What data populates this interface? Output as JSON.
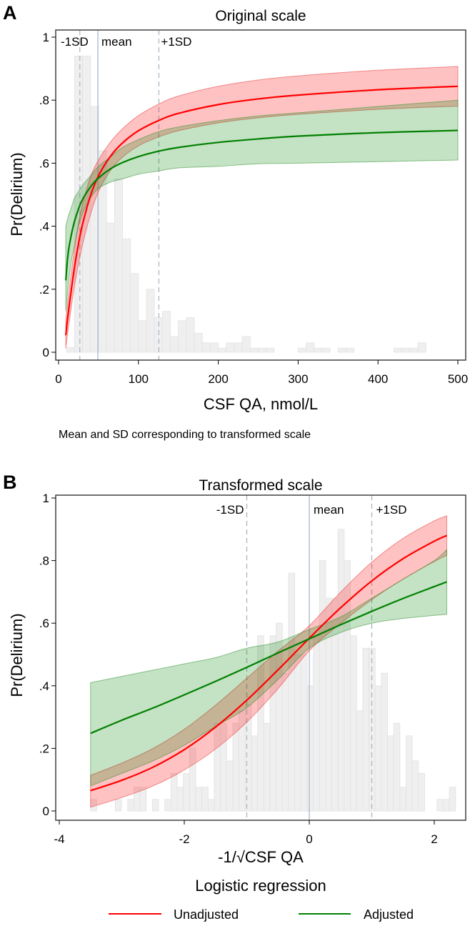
{
  "chart_data": [
    {
      "type": "line",
      "panel_label": "A",
      "title": "Original scale",
      "xlabel": "CSF QA, nmol/L",
      "ylabel": "Pr(Delirium)",
      "xlim": [
        0,
        500
      ],
      "ylim": [
        0,
        1
      ],
      "xticks": [
        0,
        100,
        200,
        300,
        400,
        500
      ],
      "xtick_labels": [
        "0",
        "100",
        "200",
        "300",
        "400",
        "500"
      ],
      "yticks": [
        0,
        0.2,
        0.4,
        0.6,
        0.8,
        1
      ],
      "ytick_labels": [
        "0",
        ".2",
        ".4",
        ".6",
        ".8",
        "1"
      ],
      "grid": false,
      "vlines": [
        {
          "label": "-1SD",
          "x": 26.6,
          "style": "dashed"
        },
        {
          "label": "mean",
          "x": 49.2,
          "style": "solid"
        },
        {
          "label": "+1SD",
          "x": 125.6,
          "style": "dashed"
        }
      ],
      "histogram": {
        "bin_start": 10,
        "bin_width": 10,
        "heights": [
          0.015,
          0.94,
          0.94,
          0.78,
          0.64,
          0.41,
          0.55,
          0.36,
          0.25,
          0.1,
          0.2,
          0.11,
          0.13,
          0.05,
          0.1,
          0.11,
          0.06,
          0.03,
          0.03,
          0.013,
          0.03,
          0.03,
          0.05,
          0.013,
          0.013,
          0.013,
          0,
          0,
          0,
          0.013,
          0.03,
          0.013,
          0.013,
          0,
          0.013,
          0.013,
          0,
          0,
          0,
          0,
          0,
          0.013,
          0.013,
          0.013,
          0.03
        ]
      },
      "x": [
        9,
        12,
        16,
        20,
        25,
        30,
        40,
        50,
        65,
        80,
        100,
        125,
        150,
        200,
        250,
        300,
        400,
        500
      ],
      "series": [
        {
          "name": "Unadjusted",
          "color": "#ff0000",
          "y": [
            0.054,
            0.122,
            0.199,
            0.271,
            0.345,
            0.406,
            0.497,
            0.56,
            0.622,
            0.664,
            0.703,
            0.735,
            0.758,
            0.786,
            0.804,
            0.816,
            0.833,
            0.844
          ],
          "ci_low": [
            0.012,
            0.072,
            0.144,
            0.211,
            0.28,
            0.341,
            0.437,
            0.51,
            0.577,
            0.619,
            0.655,
            0.683,
            0.703,
            0.728,
            0.744,
            0.755,
            0.771,
            0.781
          ],
          "ci_high": [
            0.099,
            0.172,
            0.254,
            0.331,
            0.41,
            0.471,
            0.557,
            0.61,
            0.667,
            0.709,
            0.751,
            0.787,
            0.813,
            0.844,
            0.864,
            0.877,
            0.895,
            0.907
          ]
        },
        {
          "name": "Adjusted",
          "color": "#008000",
          "y": [
            0.228,
            0.314,
            0.373,
            0.416,
            0.455,
            0.485,
            0.525,
            0.553,
            0.582,
            0.602,
            0.621,
            0.638,
            0.65,
            0.666,
            0.677,
            0.686,
            0.697,
            0.704
          ],
          "ci_low": [
            0.13,
            0.21,
            0.29,
            0.34,
            0.4,
            0.44,
            0.49,
            0.52,
            0.54,
            0.55,
            0.565,
            0.575,
            0.585,
            0.59,
            0.598,
            0.6,
            0.605,
            0.61
          ],
          "ci_high": [
            0.4,
            0.43,
            0.46,
            0.49,
            0.51,
            0.53,
            0.56,
            0.59,
            0.62,
            0.65,
            0.675,
            0.7,
            0.715,
            0.735,
            0.75,
            0.76,
            0.78,
            0.8
          ]
        }
      ]
    },
    {
      "type": "line",
      "panel_label": "B",
      "title": "Transformed scale",
      "xlabel": "-1/√CSF QA",
      "ylabel": "Pr(Delirium)",
      "xlim": [
        -4,
        2.5
      ],
      "ylim": [
        0,
        1
      ],
      "xticks": [
        -4,
        -2,
        0,
        2
      ],
      "xtick_labels": [
        "-4",
        "-2",
        "0",
        "2"
      ],
      "yticks": [
        0,
        0.2,
        0.4,
        0.6,
        0.8,
        1
      ],
      "ytick_labels": [
        "0",
        ".2",
        ".4",
        ".6",
        ".8",
        "1"
      ],
      "grid": false,
      "vlines": [
        {
          "label": "-1SD",
          "x": -1,
          "style": "dashed"
        },
        {
          "label": "mean",
          "x": 0,
          "style": "solid"
        },
        {
          "label": "+1SD",
          "x": 1,
          "style": "dashed"
        }
      ],
      "histogram": {
        "bin_start": -3.5,
        "bin_width": 0.099,
        "heights": [
          0.037,
          0,
          0,
          0,
          0.037,
          0,
          0.037,
          0.076,
          0.076,
          0,
          0.037,
          0,
          0.037,
          0.12,
          0.076,
          0.12,
          0.2,
          0.076,
          0.076,
          0.037,
          0.28,
          0.28,
          0.16,
          0.28,
          0.32,
          0.34,
          0.24,
          0.56,
          0.28,
          0.56,
          0.6,
          0.44,
          0.76,
          0.5,
          0.5,
          0.4,
          0.56,
          0.8,
          0.68,
          0.68,
          0.9,
          0.8,
          0.56,
          0.32,
          0.52,
          0.52,
          0.4,
          0.44,
          0.24,
          0.28,
          0.076,
          0.24,
          0.16,
          0.12,
          0,
          0,
          0.037,
          0.037,
          0.076
        ]
      },
      "x": [
        -3.5,
        -3,
        -2.5,
        -2,
        -1.5,
        -1,
        -0.5,
        0,
        0.5,
        1,
        1.5,
        2,
        2.2
      ],
      "series": [
        {
          "name": "Unadjusted",
          "color": "#ff0000",
          "y": [
            0.065,
            0.098,
            0.14,
            0.196,
            0.268,
            0.354,
            0.451,
            0.552,
            0.649,
            0.735,
            0.806,
            0.862,
            0.88
          ],
          "ci_low": [
            0.012,
            0.043,
            0.08,
            0.131,
            0.198,
            0.284,
            0.391,
            0.512,
            0.599,
            0.675,
            0.741,
            0.797,
            0.817
          ],
          "ci_high": [
            0.114,
            0.153,
            0.2,
            0.261,
            0.338,
            0.424,
            0.511,
            0.592,
            0.699,
            0.795,
            0.871,
            0.927,
            0.943
          ]
        },
        {
          "name": "Adjusted",
          "color": "#008000",
          "y": [
            0.248,
            0.29,
            0.329,
            0.371,
            0.414,
            0.459,
            0.505,
            0.55,
            0.595,
            0.638,
            0.679,
            0.717,
            0.732
          ],
          "ci_low": [
            0.08,
            0.12,
            0.16,
            0.21,
            0.27,
            0.33,
            0.42,
            0.52,
            0.57,
            0.6,
            0.615,
            0.625,
            0.628
          ],
          "ci_high": [
            0.41,
            0.43,
            0.45,
            0.47,
            0.49,
            0.52,
            0.54,
            0.58,
            0.62,
            0.68,
            0.74,
            0.8,
            0.835
          ]
        }
      ]
    }
  ],
  "note": "Mean and SD corresponding to transformed scale",
  "footer_title": "Logistic regression",
  "legend": {
    "position": "bottom",
    "items": [
      {
        "label": "Unadjusted",
        "color": "#ff0000"
      },
      {
        "label": "Adjusted",
        "color": "#008000"
      }
    ]
  }
}
